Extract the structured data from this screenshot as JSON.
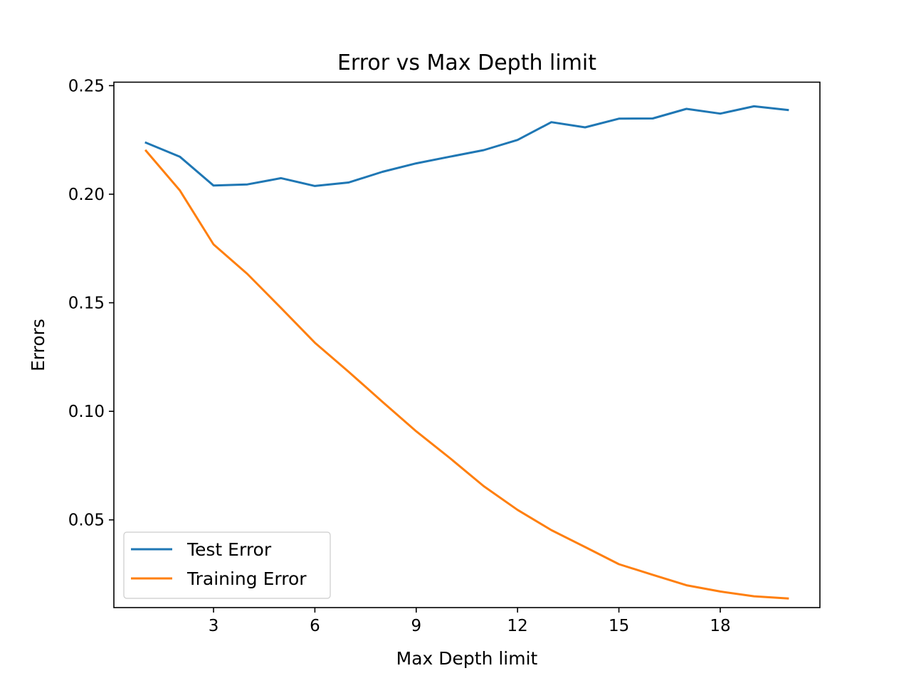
{
  "chart_data": {
    "type": "line",
    "title": "Error vs Max Depth limit",
    "xlabel": "Max Depth limit",
    "ylabel": "Errors",
    "xlim": [
      0.05,
      20.95
    ],
    "ylim": [
      0.0096,
      0.2516
    ],
    "xticks": [
      3,
      6,
      9,
      12,
      15,
      18
    ],
    "yticks": [
      0.05,
      0.1,
      0.15,
      0.2,
      0.25
    ],
    "ytick_labels": [
      "0.05",
      "0.10",
      "0.15",
      "0.20",
      "0.25"
    ],
    "grid": false,
    "legend_position": "lower-left",
    "x": [
      1,
      2,
      3,
      4,
      5,
      6,
      7,
      8,
      9,
      10,
      11,
      12,
      13,
      14,
      15,
      16,
      17,
      18,
      19,
      20
    ],
    "series": [
      {
        "name": "Test Error",
        "color": "#1f77b4",
        "values": [
          0.2237,
          0.2173,
          0.204,
          0.2045,
          0.2074,
          0.2038,
          0.2054,
          0.2103,
          0.2142,
          0.2173,
          0.2203,
          0.225,
          0.2332,
          0.2308,
          0.2348,
          0.2349,
          0.2393,
          0.2371,
          0.2405,
          0.2388
        ]
      },
      {
        "name": "Training Error",
        "color": "#ff7f0e",
        "values": [
          0.22,
          0.2018,
          0.1769,
          0.1633,
          0.1476,
          0.1316,
          0.1182,
          0.1044,
          0.0908,
          0.0784,
          0.0655,
          0.0546,
          0.0453,
          0.0375,
          0.0296,
          0.0247,
          0.0199,
          0.017,
          0.0148,
          0.0138
        ]
      }
    ]
  }
}
